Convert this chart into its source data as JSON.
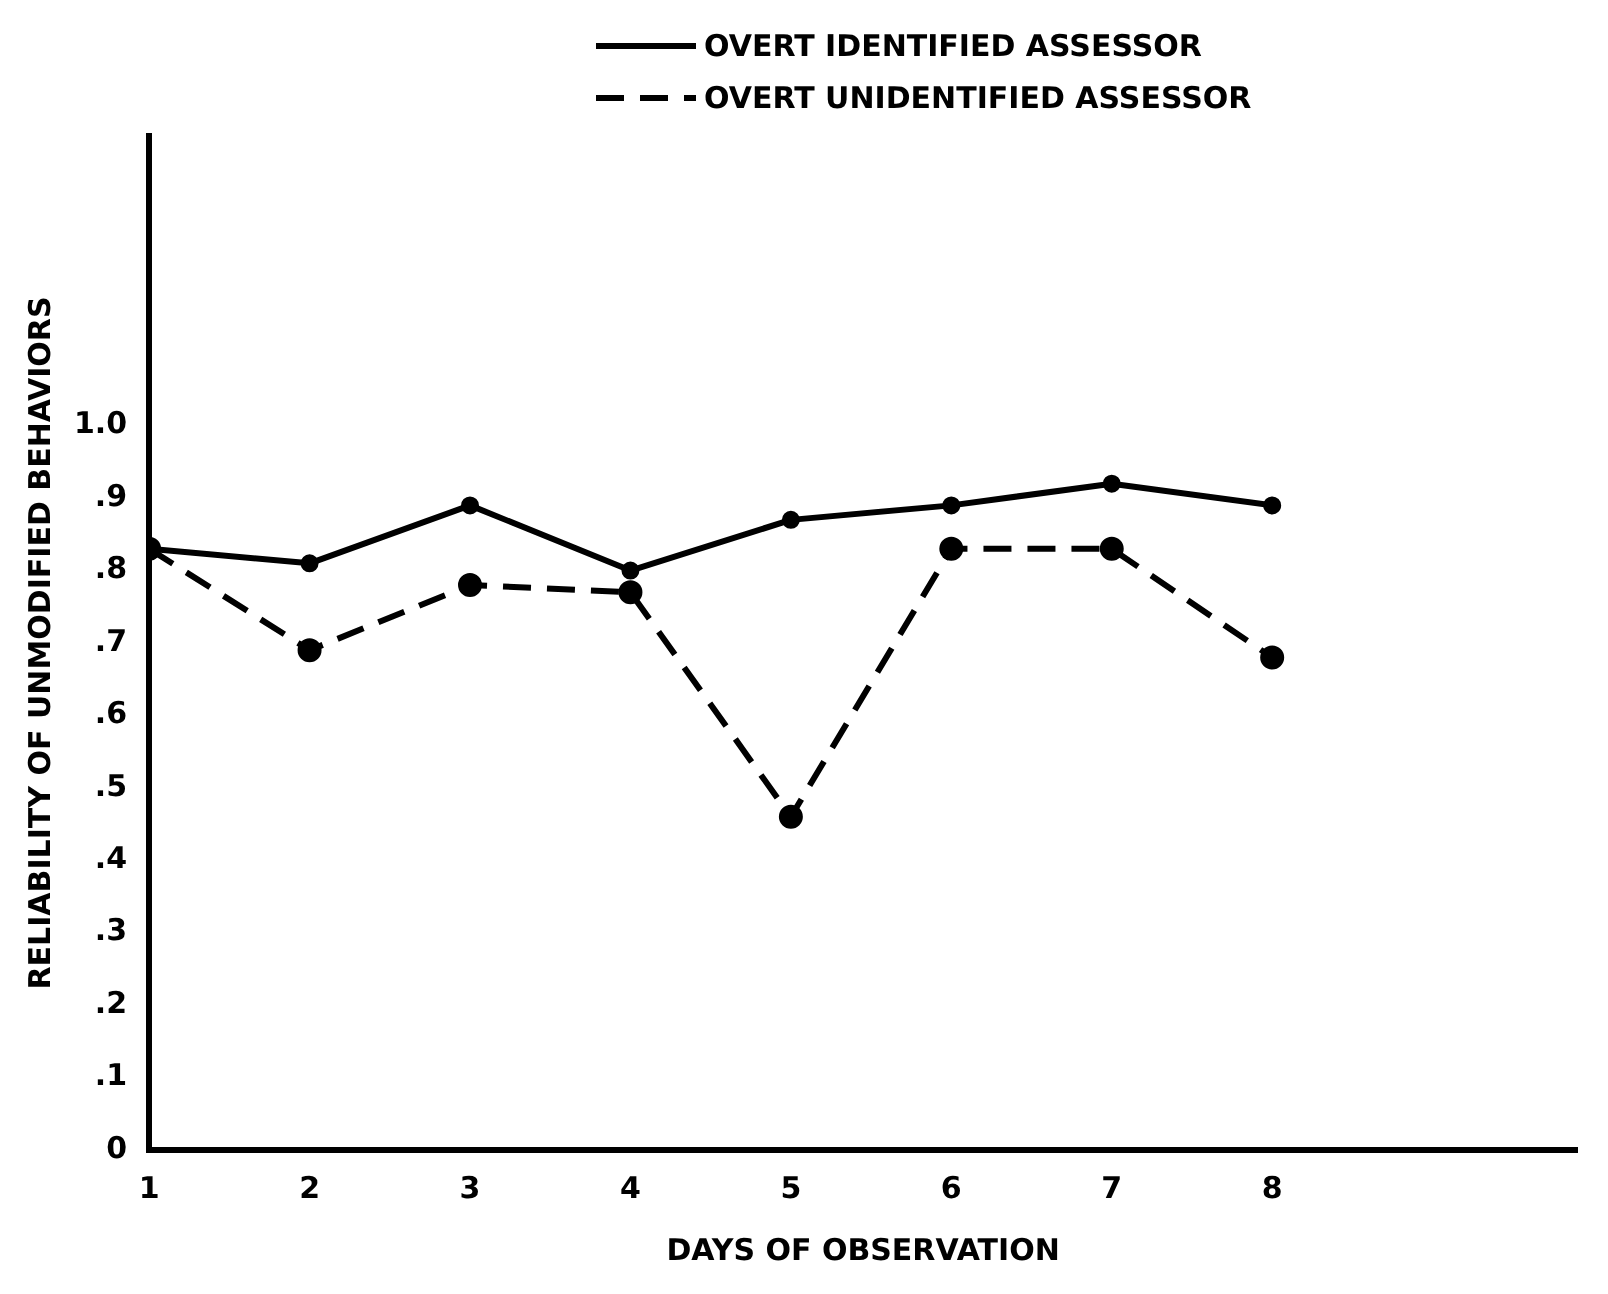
{
  "chart_data": {
    "type": "line",
    "xlabel": "DAYS OF OBSERVATION",
    "ylabel": "RELIABILITY OF UNMODIFIED BEHAVIORS",
    "x": [
      1,
      2,
      3,
      4,
      5,
      6,
      7,
      8
    ],
    "series": [
      {
        "name": "OVERT IDENTIFIED ASSESSOR",
        "color": "#000000",
        "line_style": "solid",
        "values": [
          0.83,
          0.81,
          0.89,
          0.8,
          0.87,
          0.89,
          0.92,
          0.89
        ]
      },
      {
        "name": "OVERT UNIDENTIFIED ASSESSOR",
        "color": "#000000",
        "line_style": "dashed",
        "values": [
          0.83,
          0.69,
          0.78,
          0.77,
          0.46,
          0.83,
          0.83,
          0.68
        ]
      }
    ],
    "xlim": [
      1,
      9.9
    ],
    "xticks": [
      1,
      2,
      3,
      4,
      5,
      6,
      7,
      8
    ],
    "ylim": [
      0,
      1.4
    ],
    "yticks": [
      0,
      {
        "value": 0.1,
        "label": ".1"
      },
      {
        "value": 0.2,
        "label": ".2"
      },
      {
        "value": 0.3,
        "label": ".3"
      },
      {
        "value": 0.4,
        "label": ".4"
      },
      {
        "value": 0.5,
        "label": ".5"
      },
      {
        "value": 0.6,
        "label": ".6"
      },
      {
        "value": 0.7,
        "label": ".7"
      },
      {
        "value": 0.8,
        "label": ".8"
      },
      {
        "value": 0.9,
        "label": ".9"
      },
      {
        "value": 1.0,
        "label": "1.0"
      }
    ],
    "marker": "circle",
    "grid": false,
    "legend": "top"
  }
}
